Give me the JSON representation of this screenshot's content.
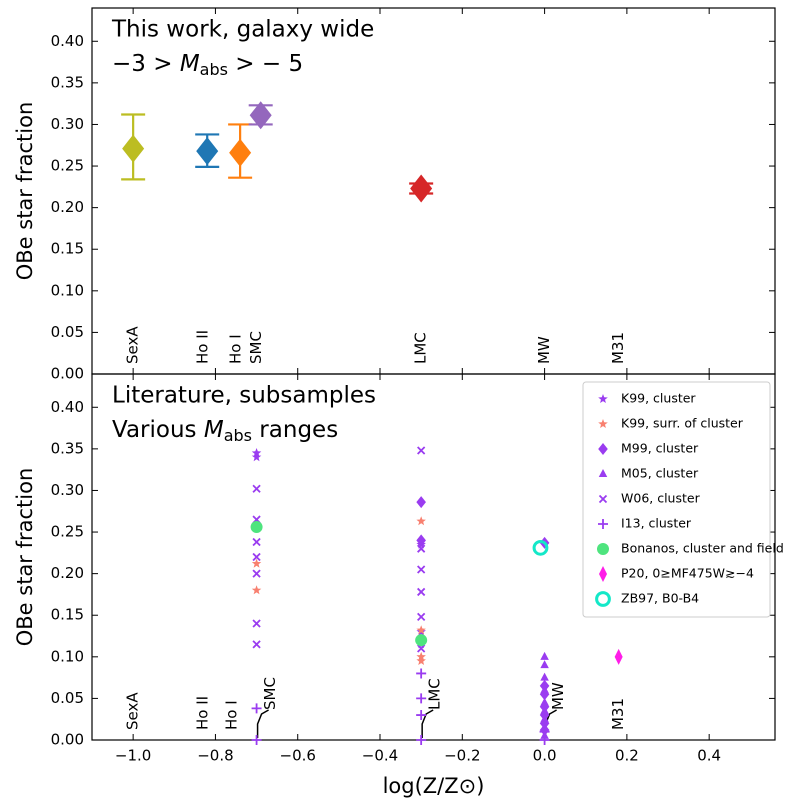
{
  "chart_data": [
    {
      "type": "errorbar",
      "title": "This work, galaxy wide",
      "subtitle": {
        "prefix": "−3 > ",
        "symbol": "M",
        "subscript": "abs",
        "suffix": " > − 5"
      },
      "ylabel": "OBe star fraction",
      "xlim": [
        -1.1,
        0.56
      ],
      "ylim": [
        0,
        0.44
      ],
      "yticks": [
        {
          "value": 0,
          "label": "0.00"
        },
        {
          "value": 0.05,
          "label": "0.05"
        },
        {
          "value": 0.1,
          "label": "0.10"
        },
        {
          "value": 0.15,
          "label": "0.15"
        },
        {
          "value": 0.2,
          "label": "0.20"
        },
        {
          "value": 0.25,
          "label": "0.25"
        },
        {
          "value": 0.3,
          "label": "0.30"
        },
        {
          "value": 0.35,
          "label": "0.35"
        },
        {
          "value": 0.4,
          "label": "0.40"
        }
      ],
      "x": [
        -1.0,
        -0.82,
        -0.74,
        -0.69,
        -0.3
      ],
      "values": [
        0.271,
        0.268,
        0.266,
        0.311,
        0.223
      ],
      "lower": [
        0.234,
        0.249,
        0.236,
        0.3,
        0.217
      ],
      "upper": [
        0.312,
        0.288,
        0.3,
        0.323,
        0.229
      ],
      "colors": [
        "#bcbd22",
        "#1f77b4",
        "#ff7f0e",
        "#9467bd",
        "#d62728"
      ],
      "galaxy_labels": [
        {
          "text": "SexA",
          "x": -1.0
        },
        {
          "text": "Ho II",
          "x": -0.83
        },
        {
          "text": "Ho I",
          "x": -0.75
        },
        {
          "text": "SMC",
          "x": -0.7
        },
        {
          "text": "LMC",
          "x": -0.3
        },
        {
          "text": "MW",
          "x": 0.0
        },
        {
          "text": "M31",
          "x": 0.18
        }
      ]
    },
    {
      "type": "scatter",
      "title": "Literature, subsamples",
      "subtitle": {
        "prefix": "Various ",
        "symbol": "M",
        "subscript": "abs",
        "suffix": " ranges"
      },
      "ylabel": "OBe star fraction",
      "xlabel": "log(Z/Z⊙)",
      "xlim": [
        -1.1,
        0.56
      ],
      "ylim": [
        0,
        0.44
      ],
      "xticks": [
        {
          "value": -1.0,
          "label": "−1.0"
        },
        {
          "value": -0.8,
          "label": "−0.8"
        },
        {
          "value": -0.6,
          "label": "−0.6"
        },
        {
          "value": -0.4,
          "label": "−0.4"
        },
        {
          "value": -0.2,
          "label": "−0.2"
        },
        {
          "value": 0.0,
          "label": "0.0"
        },
        {
          "value": 0.2,
          "label": "0.2"
        },
        {
          "value": 0.4,
          "label": "0.4"
        }
      ],
      "yticks": [
        {
          "value": 0,
          "label": "0.00"
        },
        {
          "value": 0.05,
          "label": "0.05"
        },
        {
          "value": 0.1,
          "label": "0.10"
        },
        {
          "value": 0.15,
          "label": "0.15"
        },
        {
          "value": 0.2,
          "label": "0.20"
        },
        {
          "value": 0.25,
          "label": "0.25"
        },
        {
          "value": 0.3,
          "label": "0.30"
        },
        {
          "value": 0.35,
          "label": "0.35"
        },
        {
          "value": 0.4,
          "label": "0.40"
        }
      ],
      "legend": "upper right",
      "series": [
        {
          "name": "K99, cluster",
          "color": "#9a3cf0",
          "marker": "star",
          "x": [
            -0.7,
            -0.7,
            -0.3,
            -0.3,
            -0.3
          ],
          "values": [
            0.345,
            0.34,
            0.235,
            0.13,
            0.115
          ]
        },
        {
          "name": "K99, surr. of cluster",
          "color": "#f88070",
          "marker": "star",
          "x": [
            -0.7,
            -0.7,
            -0.3,
            -0.3,
            -0.3,
            -0.3
          ],
          "values": [
            0.212,
            0.18,
            0.263,
            0.132,
            0.1,
            0.095
          ]
        },
        {
          "name": "M99, cluster",
          "color": "#9a3cf0",
          "marker": "diamond",
          "x": [
            -0.3,
            -0.3,
            0.0,
            0.0,
            0.0,
            0.0,
            0.0,
            0.0,
            0.0
          ],
          "values": [
            0.286,
            0.24,
            0.237,
            0.065,
            0.055,
            0.04,
            0.03,
            0.02,
            0.012
          ]
        },
        {
          "name": "M05, cluster",
          "color": "#9a3cf0",
          "marker": "triangle",
          "x": [
            0.0,
            0.0,
            0.0,
            0.0,
            0.0,
            0.0,
            0.0,
            0.0,
            0.0
          ],
          "values": [
            0.1,
            0.09,
            0.075,
            0.06,
            0.045,
            0.035,
            0.025,
            0.015,
            0.005
          ]
        },
        {
          "name": "W06, cluster",
          "color": "#9a3cf0",
          "marker": "x",
          "x": [
            -0.7,
            -0.7,
            -0.7,
            -0.7,
            -0.7,
            -0.7,
            -0.7,
            -0.3,
            -0.3,
            -0.3,
            -0.3,
            -0.3,
            -0.3
          ],
          "values": [
            0.302,
            0.265,
            0.238,
            0.22,
            0.2,
            0.14,
            0.115,
            0.348,
            0.23,
            0.205,
            0.178,
            0.148,
            0.11
          ]
        },
        {
          "name": "I13, cluster",
          "color": "#9a3cf0",
          "marker": "plus",
          "x": [
            -0.7,
            -0.7,
            -0.3,
            -0.3,
            -0.3,
            -0.3,
            0.0,
            0.0
          ],
          "values": [
            0.038,
            0.0,
            0.08,
            0.05,
            0.03,
            0.0,
            0.01,
            0.0
          ]
        },
        {
          "name": "Bonanos, cluster and field",
          "color": "#4ee47e",
          "marker": "circle",
          "x": [
            -0.7,
            -0.3
          ],
          "values": [
            0.256,
            0.12
          ]
        },
        {
          "name": "P20, 0≥MF475W≳−4",
          "color": "#ff1de8",
          "marker": "thin-diamond",
          "x": [
            0.18
          ],
          "values": [
            0.1
          ]
        },
        {
          "name": "ZB97, B0-B4",
          "color": "#14e8c8",
          "marker": "open-circle",
          "x": [
            -0.01
          ],
          "values": [
            0.231
          ]
        }
      ],
      "galaxy_labels": [
        {
          "text": "SexA",
          "x": -1.0
        },
        {
          "text": "Ho II",
          "x": -0.83
        },
        {
          "text": "Ho I",
          "x": -0.76
        },
        {
          "text": "SMC",
          "x": -0.7,
          "leader": true
        },
        {
          "text": "LMC",
          "x": -0.3,
          "leader": true
        },
        {
          "text": "MW",
          "x": 0.0,
          "leader": true
        },
        {
          "text": "M31",
          "x": 0.18
        }
      ]
    }
  ]
}
